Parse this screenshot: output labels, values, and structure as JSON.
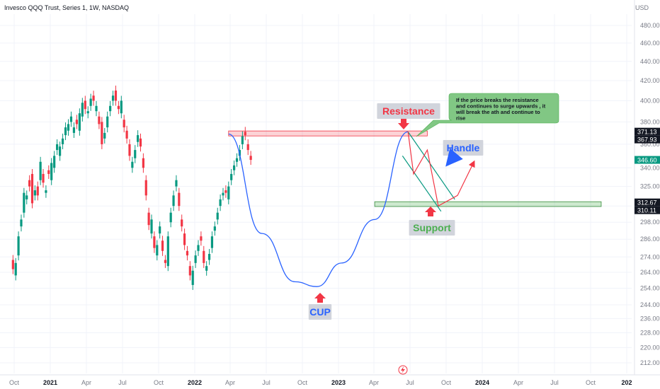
{
  "header": {
    "symbol_title": "Invesco QQQ Trust, Series 1, 1W, NASDAQ",
    "currency": "USD"
  },
  "chart_data": {
    "type": "candlestick",
    "title": "Invesco QQQ Trust, Series 1, 1W, NASDAQ",
    "y_unit": "USD",
    "y_scale": "log",
    "ylim": [
      208,
      500
    ],
    "y_ticks": [
      212.0,
      220.0,
      228.0,
      236.0,
      244.0,
      254.0,
      264.0,
      274.0,
      286.0,
      298.0,
      310.0,
      325.0,
      340.0,
      360.0,
      380.0,
      400.0,
      420.0,
      440.0,
      460.0,
      480.0
    ],
    "x_ticks": [
      "Oct",
      "2021",
      "Apr",
      "Jul",
      "Oct",
      "2022",
      "Apr",
      "Jul",
      "Oct",
      "2023",
      "Apr",
      "Jul",
      "Oct",
      "2024",
      "Apr",
      "Jul",
      "Oct",
      "202"
    ],
    "x_tick_values": [
      "2020-10",
      "2021-01",
      "2021-04",
      "2021-07",
      "2021-10",
      "2022-01",
      "2022-04",
      "2022-07",
      "2022-10",
      "2023-01",
      "2023-04",
      "2023-07",
      "2023-10",
      "2024-01",
      "2024-04",
      "2024-07",
      "2024-10",
      "2025-01"
    ],
    "grid": true,
    "price_labels": [
      {
        "text": "371.13",
        "value": 371.13,
        "color": "#ffffff",
        "bg": "#131722"
      },
      {
        "text": "367.93",
        "value": 367.93,
        "color": "#ffffff",
        "bg": "#131722"
      },
      {
        "text": "346.60",
        "value": 346.6,
        "color": "#ffffff",
        "bg": "#089981"
      },
      {
        "text": "312.67",
        "value": 312.67,
        "color": "#ffffff",
        "bg": "#131722"
      },
      {
        "text": "310.11",
        "value": 310.11,
        "color": "#ffffff",
        "bg": "#131722"
      }
    ],
    "series": [
      {
        "type": "ohlc_path",
        "start": "2020-09-28",
        "interval": "1W",
        "bull_color": "#089981",
        "bear_color": "#f23645",
        "path": [
          [
            272,
            266
          ],
          [
            262,
            270
          ],
          [
            275,
            288
          ],
          [
            295,
            300
          ],
          [
            305,
            320
          ],
          [
            315,
            318
          ],
          [
            330,
            325
          ],
          [
            335,
            312
          ],
          [
            318,
            322
          ],
          [
            325,
            318
          ],
          [
            330,
            345
          ],
          [
            335,
            328
          ],
          [
            320,
            322
          ],
          [
            338,
            335
          ],
          [
            330,
            344
          ],
          [
            340,
            350
          ],
          [
            355,
            360
          ],
          [
            350,
            358
          ],
          [
            360,
            365
          ],
          [
            368,
            375
          ],
          [
            372,
            378
          ],
          [
            380,
            385
          ],
          [
            370,
            375
          ],
          [
            382,
            378
          ],
          [
            372,
            388
          ],
          [
            385,
            398
          ],
          [
            400,
            392
          ],
          [
            388,
            390
          ],
          [
            395,
            402
          ],
          [
            405,
            400
          ],
          [
            390,
            395
          ],
          [
            385,
            378
          ],
          [
            380,
            360
          ],
          [
            365,
            370
          ],
          [
            375,
            385
          ],
          [
            390,
            395
          ],
          [
            400,
            405
          ],
          [
            410,
            400
          ],
          [
            395,
            392
          ],
          [
            388,
            400
          ],
          [
            382,
            375
          ],
          [
            372,
            365
          ],
          [
            360,
            350
          ],
          [
            340,
            345
          ],
          [
            348,
            355
          ],
          [
            362,
            368
          ],
          [
            365,
            358
          ],
          [
            348,
            340
          ],
          [
            330,
            318
          ],
          [
            305,
            296
          ],
          [
            290,
            300
          ],
          [
            288,
            280
          ],
          [
            275,
            282
          ],
          [
            290,
            295
          ],
          [
            285,
            278
          ],
          [
            272,
            270
          ],
          [
            268,
            288
          ],
          [
            298,
            305
          ],
          [
            310,
            318
          ],
          [
            325,
            330
          ],
          [
            320,
            310
          ],
          [
            300,
            295
          ],
          [
            290,
            282
          ],
          [
            278,
            275
          ],
          [
            268,
            262
          ],
          [
            256,
            265
          ],
          [
            270,
            275
          ],
          [
            278,
            282
          ],
          [
            288,
            285
          ],
          [
            278,
            270
          ],
          [
            265,
            268
          ],
          [
            272,
            276
          ],
          [
            280,
            288
          ],
          [
            292,
            295
          ],
          [
            300,
            305
          ],
          [
            310,
            315
          ],
          [
            318,
            320
          ],
          [
            322,
            320
          ],
          [
            315,
            325
          ],
          [
            330,
            335
          ],
          [
            338,
            342
          ],
          [
            345,
            348
          ],
          [
            350,
            355
          ],
          [
            360,
            367
          ],
          [
            371,
            367.9
          ],
          [
            360,
            355
          ],
          [
            350,
            346.6
          ]
        ]
      }
    ],
    "annotations": [
      {
        "text": "Resistance",
        "color": "#f23645",
        "bg": "#d1d4dc",
        "zone": [
          367.93,
          371.13
        ],
        "zone_start": "2022-03-28",
        "zone_end": "2023-08-14"
      },
      {
        "text": "Support",
        "color": "#4caf50",
        "bg": "#d1d4dc",
        "zone": [
          310.11,
          312.67
        ],
        "zone_start": "2023-04-03",
        "zone_end": "2024-10-28"
      },
      {
        "text": "Handle",
        "color": "#2962ff",
        "bg": "#d1d4dc"
      },
      {
        "text": "CUP",
        "color": "#2962ff",
        "bg": "#d1d4dc"
      },
      {
        "text": "If the price breaks the resistance and continues to surge upwards , it will break the ath and continue to rise",
        "color": "#131722",
        "bg": "#81c784"
      }
    ],
    "cup_curve": [
      {
        "date": "2022-03-28",
        "value": 369
      },
      {
        "date": "2022-06-20",
        "value": 290
      },
      {
        "date": "2022-09-12",
        "value": 258
      },
      {
        "date": "2022-11-07",
        "value": 255
      },
      {
        "date": "2023-01-09",
        "value": 270
      },
      {
        "date": "2023-04-03",
        "value": 300
      },
      {
        "date": "2023-06-26",
        "value": 371
      }
    ],
    "handle_channel": {
      "upper": [
        {
          "date": "2023-06-26",
          "value": 371
        },
        {
          "date": "2023-10-23",
          "value": 315
        }
      ],
      "lower": [
        {
          "date": "2023-06-12",
          "value": 350
        },
        {
          "date": "2023-09-18",
          "value": 306
        }
      ]
    },
    "projection_path": [
      {
        "date": "2023-06-26",
        "value": 371
      },
      {
        "date": "2023-07-10",
        "value": 335
      },
      {
        "date": "2023-08-14",
        "value": 355
      },
      {
        "date": "2023-09-11",
        "value": 310
      },
      {
        "date": "2023-10-30",
        "value": 318
      },
      {
        "date": "2023-12-11",
        "value": 345
      }
    ]
  }
}
